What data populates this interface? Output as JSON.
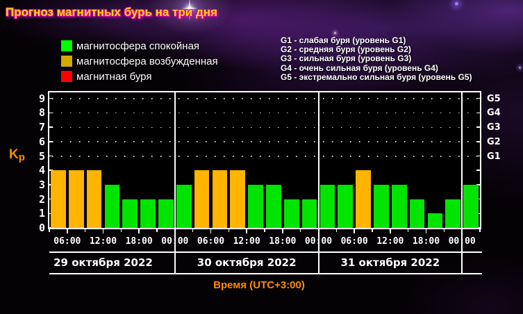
{
  "title": "Прогноз магнитных бурь на три дня",
  "legend": {
    "items": [
      {
        "label": "магнитосфера спокойная",
        "color": "#00ff00"
      },
      {
        "label": "магнитосфера возбужденная",
        "color": "#d2aa00"
      },
      {
        "label": "магнитная буря",
        "color": "#ff0000"
      }
    ]
  },
  "storm_levels": [
    "G1 - слабая буря (уровень G1)",
    "G2 - средняя буря (уровень G2)",
    "G3 - сильная буря (уровень G3)",
    "G4 - очень сильная буря (уровень G4)",
    "G5 - экстремально сильная буря (уровень G5)"
  ],
  "chart_data": {
    "type": "bar",
    "title": "Прогноз магнитных бурь на три дня",
    "ylabel": "Kp",
    "xlabel": "Время (UTC+3:00)",
    "ylim": [
      0,
      9
    ],
    "yticks": [
      0,
      1,
      2,
      3,
      4,
      5,
      6,
      7,
      8,
      9
    ],
    "grid_levels": [
      5,
      6,
      7,
      8,
      9
    ],
    "right_axis": [
      {
        "label": "G1",
        "kp": 5
      },
      {
        "label": "G2",
        "kp": 6
      },
      {
        "label": "G3",
        "kp": 7
      },
      {
        "label": "G4",
        "kp": 8
      },
      {
        "label": "G5",
        "kp": 9
      }
    ],
    "time_tick_labels": [
      "06:00",
      "12:00",
      "18:00",
      "00:00",
      "06:00",
      "12:00",
      "18:00",
      "00:00",
      "06:00",
      "12:00",
      "18:00",
      "00:00"
    ],
    "bar_colors": {
      "quiet": "#00e400",
      "excited": "#ffb400",
      "storm": "#ff0000"
    },
    "days": [
      {
        "date": "29 октября 2022",
        "bars": [
          {
            "time": "03:00",
            "kp": 4,
            "state": "excited"
          },
          {
            "time": "06:00",
            "kp": 4,
            "state": "excited"
          },
          {
            "time": "09:00",
            "kp": 4,
            "state": "excited"
          },
          {
            "time": "12:00",
            "kp": 3,
            "state": "quiet"
          },
          {
            "time": "15:00",
            "kp": 2,
            "state": "quiet"
          },
          {
            "time": "18:00",
            "kp": 2,
            "state": "quiet"
          },
          {
            "time": "21:00",
            "kp": 2,
            "state": "quiet"
          }
        ]
      },
      {
        "date": "30 октября 2022",
        "bars": [
          {
            "time": "00:00",
            "kp": 3,
            "state": "quiet"
          },
          {
            "time": "03:00",
            "kp": 4,
            "state": "excited"
          },
          {
            "time": "06:00",
            "kp": 4,
            "state": "excited"
          },
          {
            "time": "09:00",
            "kp": 4,
            "state": "excited"
          },
          {
            "time": "12:00",
            "kp": 3,
            "state": "quiet"
          },
          {
            "time": "15:00",
            "kp": 3,
            "state": "quiet"
          },
          {
            "time": "18:00",
            "kp": 2,
            "state": "quiet"
          },
          {
            "time": "21:00",
            "kp": 2,
            "state": "quiet"
          }
        ]
      },
      {
        "date": "31 октября 2022",
        "bars": [
          {
            "time": "00:00",
            "kp": 3,
            "state": "quiet"
          },
          {
            "time": "03:00",
            "kp": 3,
            "state": "quiet"
          },
          {
            "time": "06:00",
            "kp": 4,
            "state": "excited"
          },
          {
            "time": "09:00",
            "kp": 3,
            "state": "quiet"
          },
          {
            "time": "12:00",
            "kp": 3,
            "state": "quiet"
          },
          {
            "time": "15:00",
            "kp": 2,
            "state": "quiet"
          },
          {
            "time": "18:00",
            "kp": 1,
            "state": "quiet"
          },
          {
            "time": "21:00",
            "kp": 2,
            "state": "quiet"
          }
        ]
      },
      {
        "date": "",
        "bars": [
          {
            "time": "00:00",
            "kp": 3,
            "state": "quiet"
          }
        ]
      }
    ],
    "accent_colors": {
      "axis_label": "#ff8c00",
      "axis_lines": "#ffffff",
      "title_fill": "#ffd700",
      "title_outline": "#d400b4"
    }
  }
}
